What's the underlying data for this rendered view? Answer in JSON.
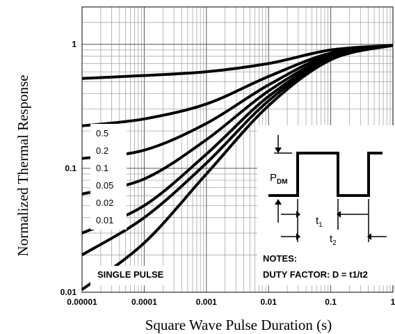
{
  "chart_data": {
    "type": "line",
    "title": "",
    "xlabel": "Square Wave Pulse Duration (s)",
    "ylabel": "Normalized Thermal Response",
    "x_scale": "log",
    "y_scale": "log",
    "xlim": [
      1e-05,
      1
    ],
    "ylim": [
      0.01,
      2
    ],
    "x_ticks": [
      "0.00001",
      "0.0001",
      "0.001",
      "0.01",
      "0.1",
      "1"
    ],
    "y_ticks": [
      "0.01",
      "0.1",
      "1"
    ],
    "grid": true,
    "legend": [
      "0.5",
      "0.2",
      "0.1",
      "0.05",
      "0.02",
      "0.01"
    ],
    "series": [
      {
        "name": "0.5",
        "x": [
          1e-05,
          0.0001,
          0.001,
          0.01,
          0.1,
          1
        ],
        "y": [
          0.53,
          0.56,
          0.6,
          0.7,
          0.9,
          0.98
        ]
      },
      {
        "name": "0.2",
        "x": [
          1e-05,
          0.0001,
          0.001,
          0.01,
          0.1,
          1
        ],
        "y": [
          0.22,
          0.25,
          0.33,
          0.55,
          0.85,
          0.98
        ]
      },
      {
        "name": "0.1",
        "x": [
          1e-05,
          0.0001,
          0.001,
          0.01,
          0.1,
          1
        ],
        "y": [
          0.12,
          0.14,
          0.23,
          0.47,
          0.83,
          0.98
        ]
      },
      {
        "name": "0.05",
        "x": [
          1e-05,
          0.0001,
          0.001,
          0.01,
          0.1,
          1
        ],
        "y": [
          0.062,
          0.082,
          0.17,
          0.42,
          0.8,
          0.98
        ]
      },
      {
        "name": "0.02",
        "x": [
          1e-05,
          0.0001,
          0.001,
          0.01,
          0.1,
          1
        ],
        "y": [
          0.03,
          0.05,
          0.13,
          0.38,
          0.78,
          0.98
        ]
      },
      {
        "name": "0.01",
        "x": [
          1e-05,
          0.0001,
          0.001,
          0.01,
          0.1,
          1
        ],
        "y": [
          0.02,
          0.04,
          0.11,
          0.35,
          0.77,
          0.98
        ]
      },
      {
        "name": "SINGLE PULSE",
        "x": [
          1e-05,
          0.0001,
          0.001,
          0.01,
          0.1,
          1
        ],
        "y": [
          0.0105,
          0.025,
          0.09,
          0.32,
          0.75,
          0.98
        ]
      }
    ],
    "annotations": {
      "single_pulse": "SINGLE PULSE",
      "notes_title": "NOTES:",
      "duty_factor": "DUTY FACTOR: D = t1/t2",
      "pdm_main": "P",
      "pdm_sub": "DM",
      "t1_main": "t",
      "t1_sub": "1",
      "t2_main": "t",
      "t2_sub": "2"
    }
  }
}
